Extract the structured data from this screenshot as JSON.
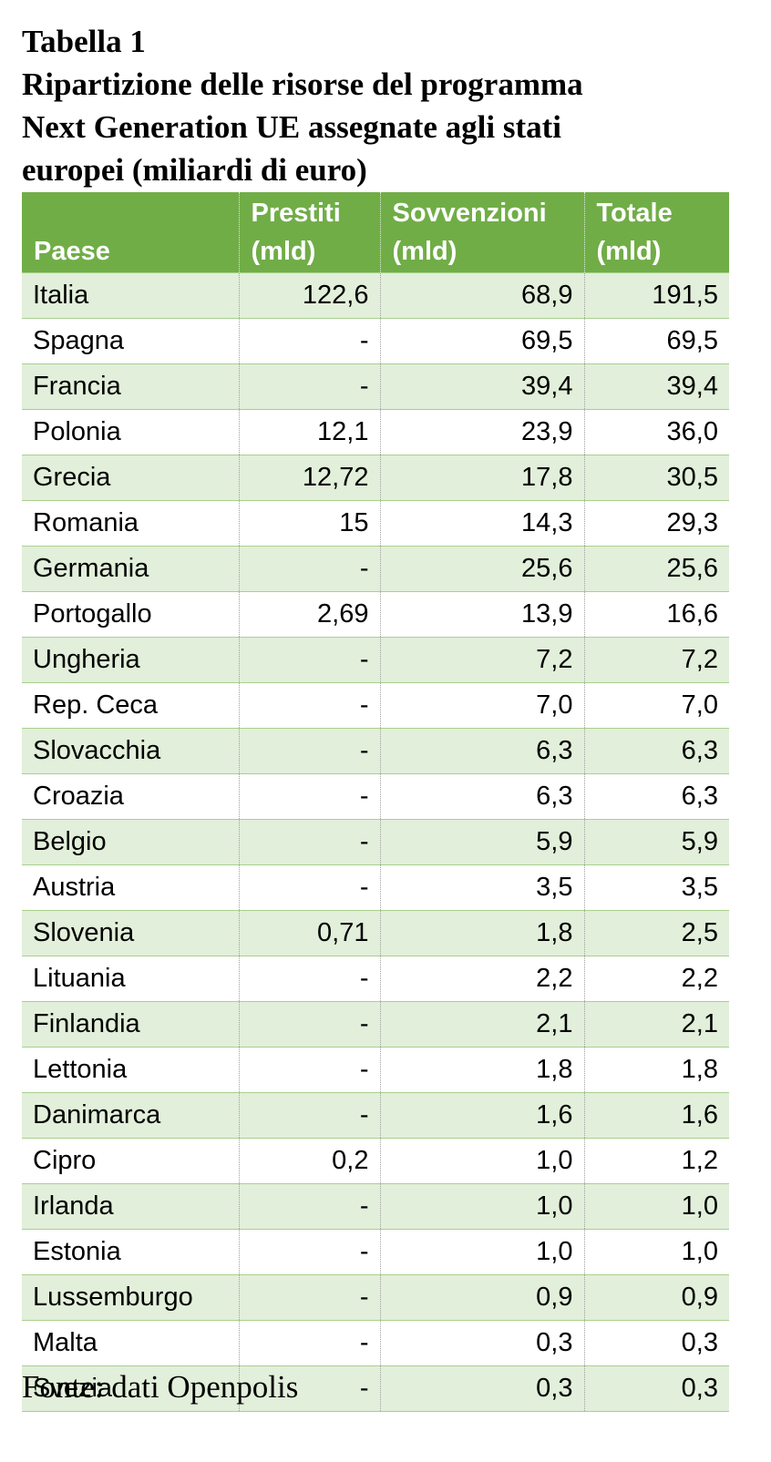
{
  "title": {
    "line1": "Tabella 1",
    "line2": "Ripartizione delle risorse del programma",
    "line3": "Next Generation UE assegnate agli stati",
    "line4": "europei (miliardi di euro)"
  },
  "table": {
    "columns": [
      {
        "line1": "",
        "line2": "Paese"
      },
      {
        "line1": "Prestiti",
        "line2": "(mld)"
      },
      {
        "line1": "Sovvenzioni",
        "line2": "(mld)"
      },
      {
        "line1": "Totale",
        "line2": "(mld)"
      }
    ],
    "rows": [
      [
        "Italia",
        "122,6",
        "68,9",
        "191,5"
      ],
      [
        "Spagna",
        "-",
        "69,5",
        "69,5"
      ],
      [
        "Francia",
        "-",
        "39,4",
        "39,4"
      ],
      [
        "Polonia",
        "12,1",
        "23,9",
        "36,0"
      ],
      [
        "Grecia",
        "12,72",
        "17,8",
        "30,5"
      ],
      [
        "Romania",
        "15",
        "14,3",
        "29,3"
      ],
      [
        "Germania",
        "-",
        "25,6",
        "25,6"
      ],
      [
        "Portogallo",
        "2,69",
        "13,9",
        "16,6"
      ],
      [
        "Ungheria",
        "-",
        "7,2",
        "7,2"
      ],
      [
        "Rep. Ceca",
        "-",
        "7,0",
        "7,0"
      ],
      [
        "Slovacchia",
        "-",
        "6,3",
        "6,3"
      ],
      [
        "Croazia",
        "-",
        "6,3",
        "6,3"
      ],
      [
        "Belgio",
        "-",
        "5,9",
        "5,9"
      ],
      [
        "Austria",
        "-",
        "3,5",
        "3,5"
      ],
      [
        "Slovenia",
        "0,71",
        "1,8",
        "2,5"
      ],
      [
        "Lituania",
        "-",
        "2,2",
        "2,2"
      ],
      [
        "Finlandia",
        "-",
        "2,1",
        "2,1"
      ],
      [
        "Lettonia",
        "-",
        "1,8",
        "1,8"
      ],
      [
        "Danimarca",
        "-",
        "1,6",
        "1,6"
      ],
      [
        "Cipro",
        "0,2",
        "1,0",
        "1,2"
      ],
      [
        "Irlanda",
        "-",
        "1,0",
        "1,0"
      ],
      [
        "Estonia",
        "-",
        "1,0",
        "1,0"
      ],
      [
        "Lussemburgo",
        "-",
        "0,9",
        "0,9"
      ],
      [
        "Malta",
        "-",
        "0,3",
        "0,3"
      ],
      [
        "Svezia",
        "-",
        "0,3",
        "0,3"
      ]
    ]
  },
  "source": "Fonte: dati Openpolis",
  "colors": {
    "header_bg": "#70ad47",
    "header_text": "#ffffff",
    "row_band": "#e2efda",
    "row_plain": "#ffffff",
    "row_border": "#a9d08e"
  }
}
